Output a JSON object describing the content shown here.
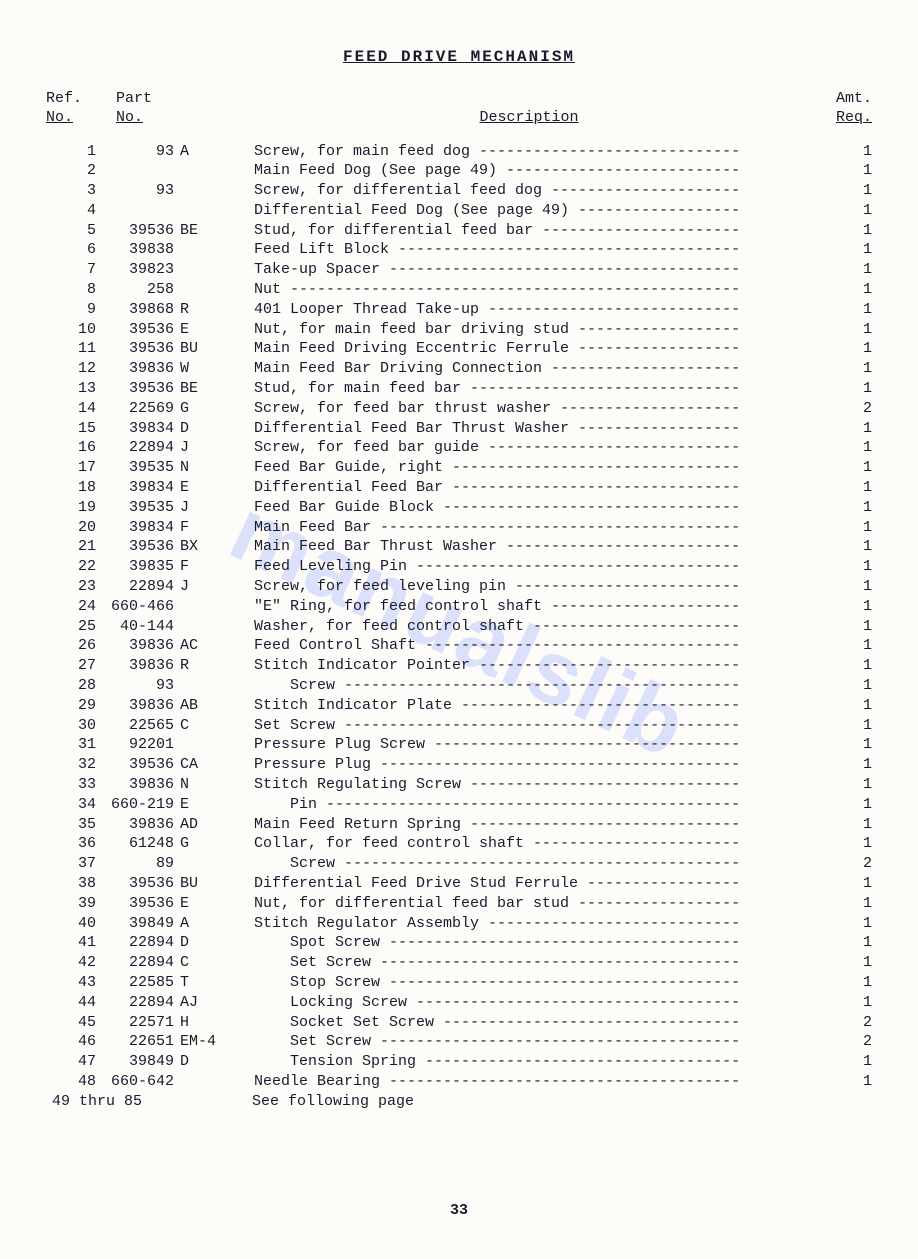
{
  "page": {
    "title": "FEED DRIVE MECHANISM",
    "page_number": "33",
    "watermark_text": "manualslib",
    "background_color": "#fdfcf9",
    "text_color": "#1a1a2e",
    "font_family": "Courier New",
    "font_size_pt": 11,
    "watermark_color": "rgba(100,130,255,0.22)"
  },
  "headers": {
    "ref_line1": "Ref.",
    "ref_line2": "No.",
    "part_line1": "Part",
    "part_line2": "No.",
    "desc": "Description",
    "amt_line1": "Amt.",
    "amt_line2": "Req."
  },
  "rows": [
    {
      "ref": "1",
      "part_num": "93",
      "part_suffix": "A",
      "desc": "Screw, for main feed dog",
      "amt": "1",
      "indent": 0
    },
    {
      "ref": "2",
      "part_num": "",
      "part_suffix": "",
      "desc": "Main Feed Dog (See page 49)",
      "amt": "1",
      "indent": 0
    },
    {
      "ref": "3",
      "part_num": "93",
      "part_suffix": "",
      "desc": "Screw, for differential feed dog",
      "amt": "1",
      "indent": 0
    },
    {
      "ref": "4",
      "part_num": "",
      "part_suffix": "",
      "desc": "Differential Feed Dog (See page 49)",
      "amt": "1",
      "indent": 0
    },
    {
      "ref": "5",
      "part_num": "39536",
      "part_suffix": "BE",
      "desc": "Stud, for differential feed bar",
      "amt": "1",
      "indent": 0
    },
    {
      "ref": "6",
      "part_num": "39838",
      "part_suffix": "",
      "desc": "Feed Lift Block",
      "amt": "1",
      "indent": 0
    },
    {
      "ref": "7",
      "part_num": "39823",
      "part_suffix": "",
      "desc": "Take-up Spacer",
      "amt": "1",
      "indent": 0
    },
    {
      "ref": "8",
      "part_num": "258",
      "part_suffix": "",
      "desc": "Nut",
      "amt": "1",
      "indent": 0
    },
    {
      "ref": "9",
      "part_num": "39868",
      "part_suffix": "R",
      "desc": "401 Looper Thread Take-up",
      "amt": "1",
      "indent": 0
    },
    {
      "ref": "10",
      "part_num": "39536",
      "part_suffix": "E",
      "desc": "Nut, for main feed bar driving stud",
      "amt": "1",
      "indent": 0
    },
    {
      "ref": "11",
      "part_num": "39536",
      "part_suffix": "BU",
      "desc": "Main Feed Driving Eccentric Ferrule",
      "amt": "1",
      "indent": 0
    },
    {
      "ref": "12",
      "part_num": "39836",
      "part_suffix": "W",
      "desc": "Main Feed Bar Driving Connection",
      "amt": "1",
      "indent": 0
    },
    {
      "ref": "13",
      "part_num": "39536",
      "part_suffix": "BE",
      "desc": "Stud, for main feed bar",
      "amt": "1",
      "indent": 0
    },
    {
      "ref": "14",
      "part_num": "22569",
      "part_suffix": "G",
      "desc": "Screw, for feed bar thrust washer",
      "amt": "2",
      "indent": 0
    },
    {
      "ref": "15",
      "part_num": "39834",
      "part_suffix": "D",
      "desc": "Differential Feed Bar Thrust Washer",
      "amt": "1",
      "indent": 0
    },
    {
      "ref": "16",
      "part_num": "22894",
      "part_suffix": "J",
      "desc": "Screw, for feed bar guide",
      "amt": "1",
      "indent": 0
    },
    {
      "ref": "17",
      "part_num": "39535",
      "part_suffix": "N",
      "desc": "Feed Bar Guide, right",
      "amt": "1",
      "indent": 0
    },
    {
      "ref": "18",
      "part_num": "39834",
      "part_suffix": "E",
      "desc": "Differential Feed Bar",
      "amt": "1",
      "indent": 0
    },
    {
      "ref": "19",
      "part_num": "39535",
      "part_suffix": "J",
      "desc": "Feed Bar Guide Block",
      "amt": "1",
      "indent": 0
    },
    {
      "ref": "20",
      "part_num": "39834",
      "part_suffix": "F",
      "desc": "Main Feed Bar",
      "amt": "1",
      "indent": 0
    },
    {
      "ref": "21",
      "part_num": "39536",
      "part_suffix": "BX",
      "desc": "Main Feed Bar Thrust Washer",
      "amt": "1",
      "indent": 0
    },
    {
      "ref": "22",
      "part_num": "39835",
      "part_suffix": "F",
      "desc": "Feed Leveling Pin",
      "amt": "1",
      "indent": 0
    },
    {
      "ref": "23",
      "part_num": "22894",
      "part_suffix": "J",
      "desc": "Screw, for feed leveling pin",
      "amt": "1",
      "indent": 0
    },
    {
      "ref": "24",
      "part_num": "660-466",
      "part_suffix": "",
      "desc": "\"E\" Ring, for feed control shaft",
      "amt": "1",
      "indent": 0
    },
    {
      "ref": "25",
      "part_num": "40-144",
      "part_suffix": "",
      "desc": "Washer, for feed control shaft",
      "amt": "1",
      "indent": 0
    },
    {
      "ref": "26",
      "part_num": "39836",
      "part_suffix": "AC",
      "desc": "Feed Control Shaft",
      "amt": "1",
      "indent": 0
    },
    {
      "ref": "27",
      "part_num": "39836",
      "part_suffix": "R",
      "desc": "Stitch Indicator Pointer",
      "amt": "1",
      "indent": 0
    },
    {
      "ref": "28",
      "part_num": "93",
      "part_suffix": "",
      "desc": "Screw",
      "amt": "1",
      "indent": 1
    },
    {
      "ref": "29",
      "part_num": "39836",
      "part_suffix": "AB",
      "desc": "Stitch Indicator Plate",
      "amt": "1",
      "indent": 0
    },
    {
      "ref": "30",
      "part_num": "22565",
      "part_suffix": "C",
      "desc": "Set Screw",
      "amt": "1",
      "indent": 0
    },
    {
      "ref": "31",
      "part_num": "92201",
      "part_suffix": "",
      "desc": "Pressure Plug Screw",
      "amt": "1",
      "indent": 0
    },
    {
      "ref": "32",
      "part_num": "39536",
      "part_suffix": "CA",
      "desc": "Pressure Plug",
      "amt": "1",
      "indent": 0
    },
    {
      "ref": "33",
      "part_num": "39836",
      "part_suffix": "N",
      "desc": "Stitch Regulating Screw",
      "amt": "1",
      "indent": 0
    },
    {
      "ref": "34",
      "part_num": "660-219",
      "part_suffix": "E",
      "desc": "Pin",
      "amt": "1",
      "indent": 1
    },
    {
      "ref": "35",
      "part_num": "39836",
      "part_suffix": "AD",
      "desc": "Main Feed Return Spring",
      "amt": "1",
      "indent": 0
    },
    {
      "ref": "36",
      "part_num": "61248",
      "part_suffix": "G",
      "desc": "Collar, for feed control shaft",
      "amt": "1",
      "indent": 0
    },
    {
      "ref": "37",
      "part_num": "89",
      "part_suffix": "",
      "desc": "Screw",
      "amt": "2",
      "indent": 1
    },
    {
      "ref": "38",
      "part_num": "39536",
      "part_suffix": "BU",
      "desc": "Differential Feed Drive Stud Ferrule",
      "amt": "1",
      "indent": 0
    },
    {
      "ref": "39",
      "part_num": "39536",
      "part_suffix": "E",
      "desc": "Nut, for differential feed bar stud",
      "amt": "1",
      "indent": 0
    },
    {
      "ref": "40",
      "part_num": "39849",
      "part_suffix": "A",
      "desc": "Stitch Regulator Assembly",
      "amt": "1",
      "indent": 0
    },
    {
      "ref": "41",
      "part_num": "22894",
      "part_suffix": "D",
      "desc": "Spot Screw",
      "amt": "1",
      "indent": 1
    },
    {
      "ref": "42",
      "part_num": "22894",
      "part_suffix": "C",
      "desc": "Set Screw",
      "amt": "1",
      "indent": 1
    },
    {
      "ref": "43",
      "part_num": "22585",
      "part_suffix": "T",
      "desc": "Stop Screw",
      "amt": "1",
      "indent": 1
    },
    {
      "ref": "44",
      "part_num": "22894",
      "part_suffix": "AJ",
      "desc": "Locking Screw",
      "amt": "1",
      "indent": 1
    },
    {
      "ref": "45",
      "part_num": "22571",
      "part_suffix": "H",
      "desc": "Socket Set Screw",
      "amt": "2",
      "indent": 1
    },
    {
      "ref": "46",
      "part_num": "22651",
      "part_suffix": "EM-4",
      "desc": "Set Screw",
      "amt": "2",
      "indent": 1
    },
    {
      "ref": "47",
      "part_num": "39849",
      "part_suffix": "D",
      "desc": "Tension Spring",
      "amt": "1",
      "indent": 1
    },
    {
      "ref": "48",
      "part_num": "660-642",
      "part_suffix": "",
      "desc": "Needle Bearing",
      "amt": "1",
      "indent": 0
    }
  ],
  "footer_row": {
    "ref_range": "49 thru 85",
    "desc": "See following page"
  }
}
